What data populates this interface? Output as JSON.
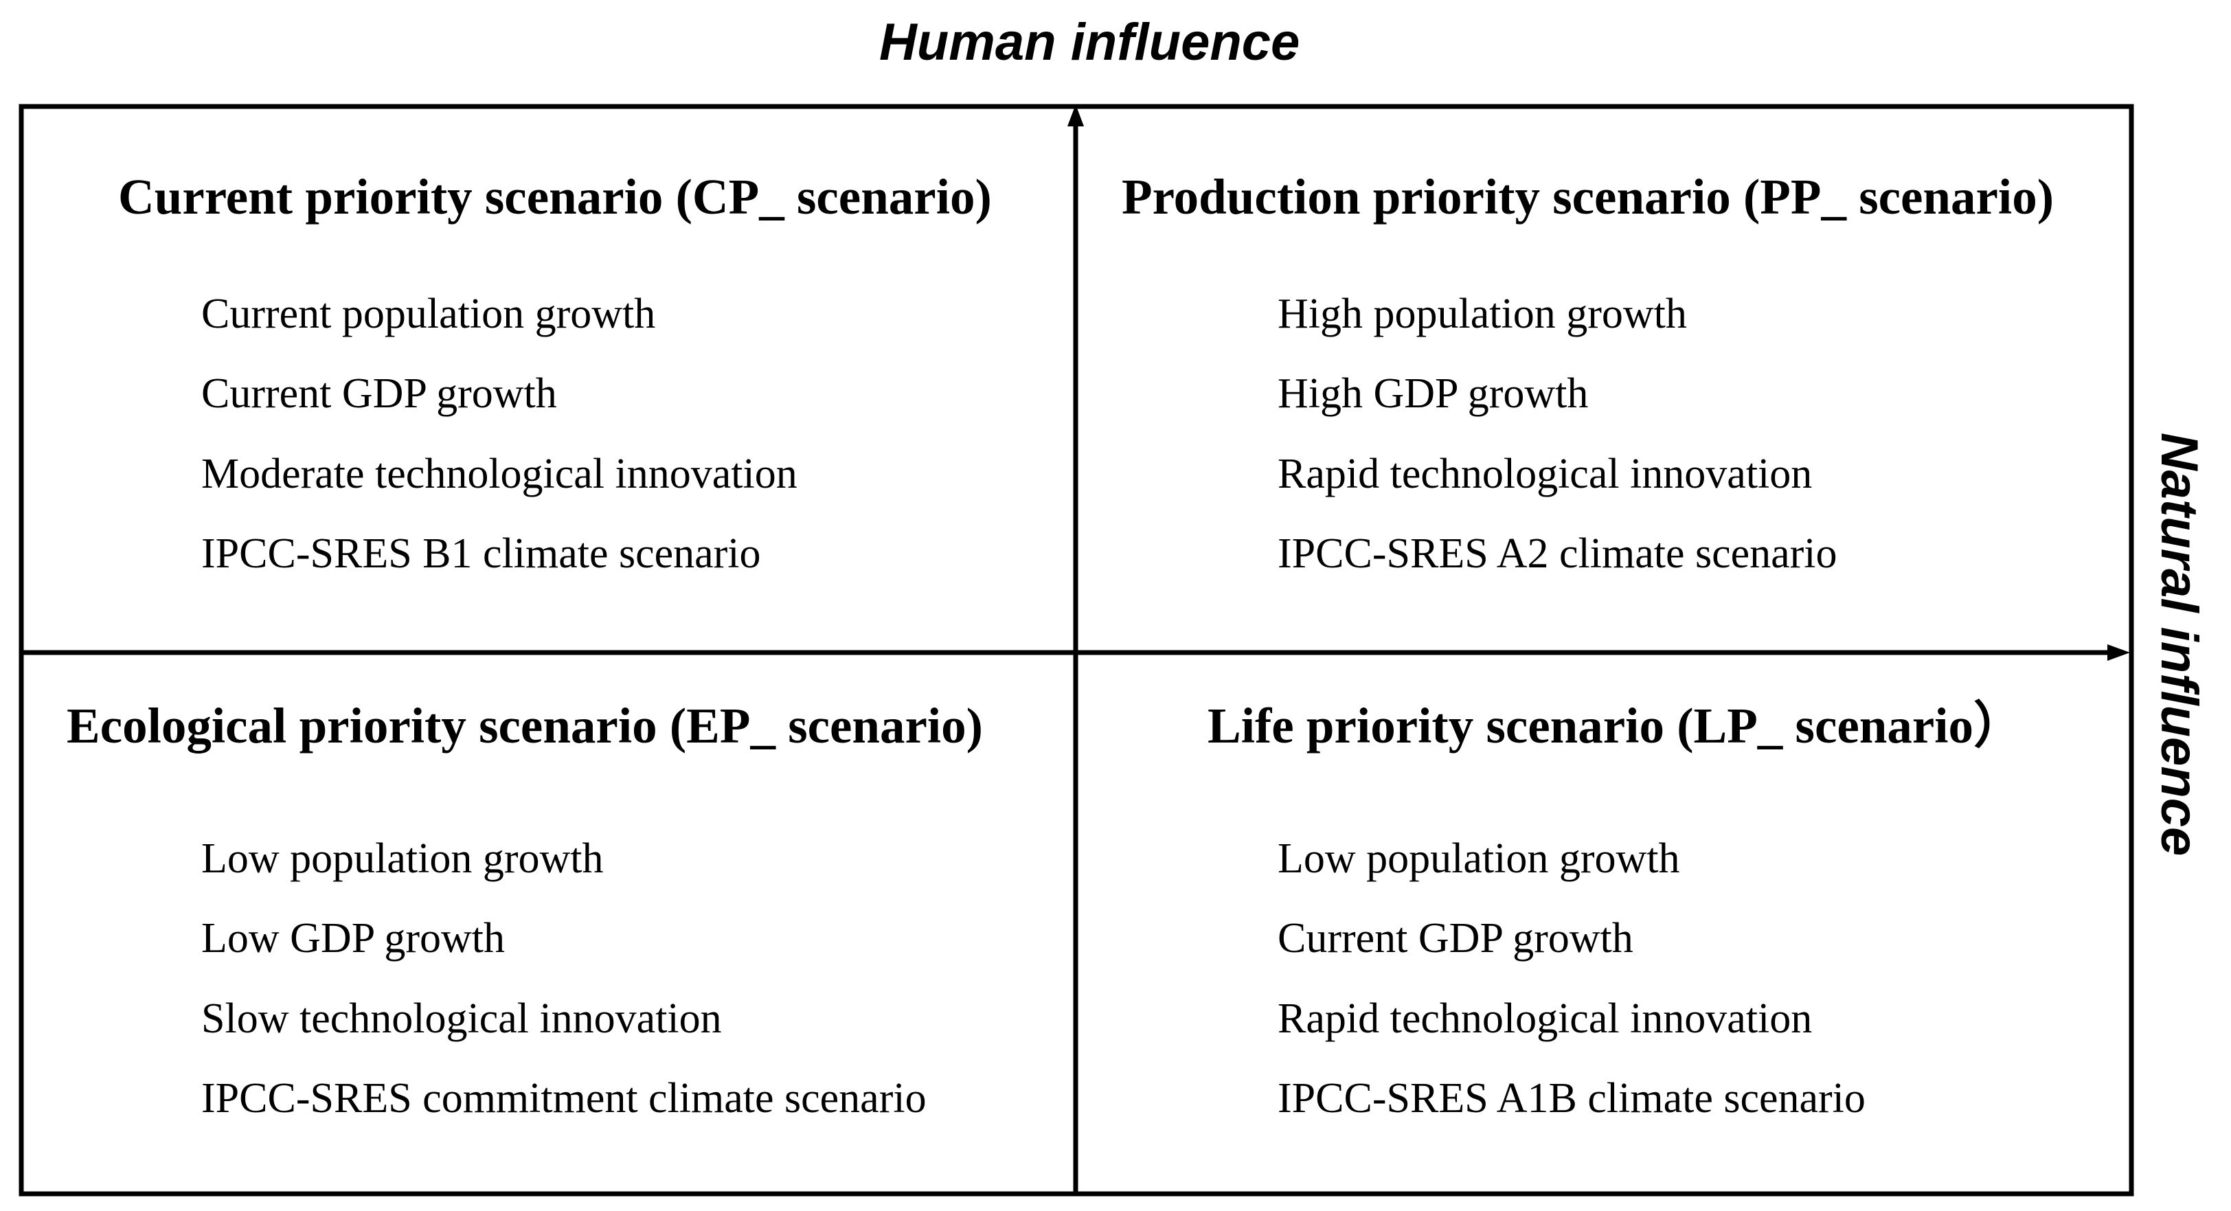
{
  "axes": {
    "vertical_label": "Human influence",
    "horizontal_label": "Natural influence"
  },
  "quadrants": {
    "top_left": {
      "title": "Current priority scenario (CP_ scenario)",
      "items": [
        "Current population growth",
        "Current GDP growth",
        "Moderate technological innovation",
        "IPCC-SRES B1 climate scenario"
      ]
    },
    "top_right": {
      "title": "Production priority scenario (PP_ scenario)",
      "items": [
        "High population growth",
        "High GDP growth",
        "Rapid technological innovation",
        "IPCC-SRES A2 climate scenario"
      ]
    },
    "bottom_left": {
      "title": "Ecological priority scenario (EP_ scenario)",
      "items": [
        "Low population growth",
        "Low GDP growth",
        "Slow technological innovation",
        "IPCC-SRES commitment climate scenario"
      ]
    },
    "bottom_right": {
      "title": "Life priority scenario (LP_ scenario）",
      "items": [
        "Low population growth",
        "Current GDP growth",
        "Rapid technological innovation",
        "IPCC-SRES A1B climate scenario"
      ]
    }
  },
  "colors": {
    "line": "#000000",
    "text": "#000000",
    "background": "#ffffff"
  }
}
